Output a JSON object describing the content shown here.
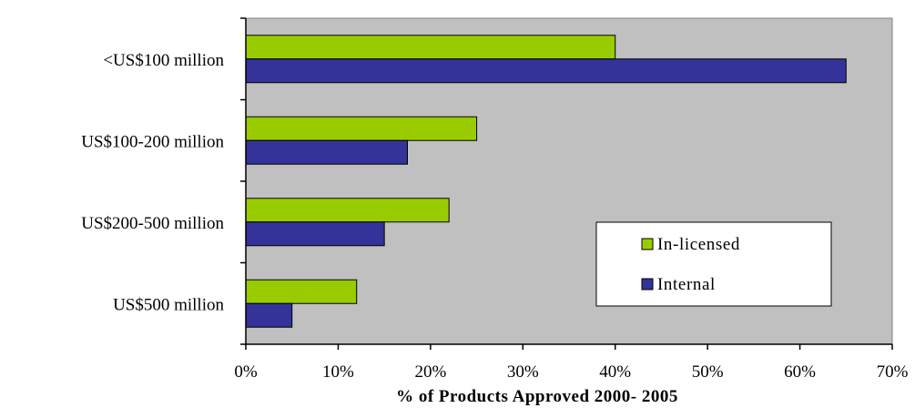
{
  "chart_data": {
    "type": "bar",
    "orientation": "horizontal",
    "categories": [
      "<US$100 million",
      "US$100-200 million",
      "US$200-500 million",
      "US$500 million"
    ],
    "series": [
      {
        "name": "In-licensed",
        "values": [
          40,
          25,
          22,
          12
        ],
        "color": "#99cc00"
      },
      {
        "name": "Internal",
        "values": [
          65,
          17.5,
          15,
          5
        ],
        "color": "#333399"
      }
    ],
    "xlabel": "% of Products Approved 2000- 2005",
    "ylabel": "",
    "xlim": [
      0,
      70
    ],
    "xticks": [
      0,
      10,
      20,
      30,
      40,
      50,
      60,
      70
    ],
    "tick_suffix": "%",
    "plot_background": "#c0c0c0",
    "grid": false,
    "legend_position": "bottom-right"
  }
}
